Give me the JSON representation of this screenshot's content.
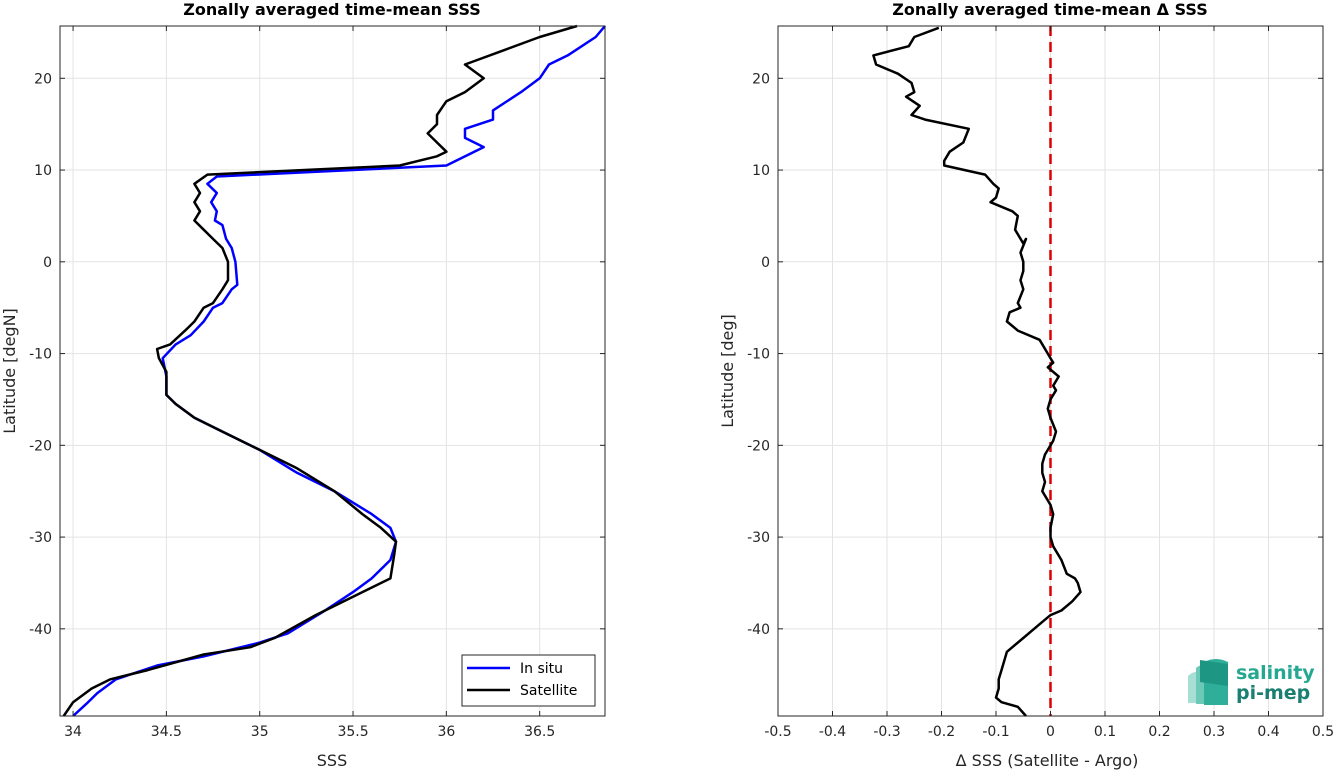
{
  "chart_data": [
    {
      "type": "line",
      "title": "Zonally averaged time-mean SSS",
      "xlabel": "SSS",
      "ylabel": "Latitude [degN]",
      "xlim": [
        33.93,
        36.85
      ],
      "ylim": [
        -49.5,
        25.7
      ],
      "xticks": [
        "34",
        "34.5",
        "35",
        "35.5",
        "36",
        "36.5"
      ],
      "yticks": [
        "-40",
        "-30",
        "-20",
        "-10",
        "0",
        "10",
        "20"
      ],
      "grid": true,
      "legend_position": "bottom-right",
      "series": [
        {
          "name": "In situ",
          "color": "#0000ff",
          "points": [
            [
              34.0,
              -49.5
            ],
            [
              34.07,
              -48.2
            ],
            [
              34.13,
              -47.0
            ],
            [
              34.23,
              -45.5
            ],
            [
              34.45,
              -44.0
            ],
            [
              34.7,
              -43.0
            ],
            [
              35.0,
              -41.5
            ],
            [
              35.15,
              -40.5
            ],
            [
              35.35,
              -38.0
            ],
            [
              35.5,
              -36.0
            ],
            [
              35.6,
              -34.5
            ],
            [
              35.7,
              -32.5
            ],
            [
              35.73,
              -30.5
            ],
            [
              35.7,
              -29.0
            ],
            [
              35.6,
              -27.5
            ],
            [
              35.4,
              -25.0
            ],
            [
              35.2,
              -23.0
            ],
            [
              35.0,
              -20.5
            ],
            [
              34.8,
              -18.5
            ],
            [
              34.65,
              -17.0
            ],
            [
              34.55,
              -15.5
            ],
            [
              34.5,
              -14.5
            ],
            [
              34.5,
              -12.5
            ],
            [
              34.48,
              -10.5
            ],
            [
              34.55,
              -9.0
            ],
            [
              34.63,
              -8.0
            ],
            [
              34.7,
              -6.5
            ],
            [
              34.75,
              -5.0
            ],
            [
              34.8,
              -4.5
            ],
            [
              34.85,
              -3.0
            ],
            [
              34.88,
              -2.5
            ],
            [
              34.87,
              0.0
            ],
            [
              34.85,
              1.5
            ],
            [
              34.82,
              2.5
            ],
            [
              34.8,
              4.0
            ],
            [
              34.76,
              4.5
            ],
            [
              34.77,
              5.5
            ],
            [
              34.74,
              6.5
            ],
            [
              34.77,
              7.5
            ],
            [
              34.72,
              8.5
            ],
            [
              34.77,
              9.3
            ],
            [
              36.0,
              10.5
            ],
            [
              36.2,
              12.5
            ],
            [
              36.1,
              13.5
            ],
            [
              36.1,
              14.5
            ],
            [
              36.25,
              15.5
            ],
            [
              36.25,
              16.5
            ],
            [
              36.4,
              18.5
            ],
            [
              36.5,
              20.0
            ],
            [
              36.55,
              21.5
            ],
            [
              36.65,
              22.5
            ],
            [
              36.8,
              24.5
            ],
            [
              36.85,
              25.7
            ]
          ]
        },
        {
          "name": "Satellite",
          "color": "#000000",
          "points": [
            [
              33.95,
              -49.5
            ],
            [
              34.0,
              -48.0
            ],
            [
              34.1,
              -46.5
            ],
            [
              34.2,
              -45.5
            ],
            [
              34.4,
              -44.5
            ],
            [
              34.7,
              -42.8
            ],
            [
              34.95,
              -42.0
            ],
            [
              35.08,
              -41.0
            ],
            [
              35.3,
              -38.5
            ],
            [
              35.55,
              -36.0
            ],
            [
              35.7,
              -34.5
            ],
            [
              35.72,
              -32.0
            ],
            [
              35.73,
              -30.5
            ],
            [
              35.65,
              -29.0
            ],
            [
              35.55,
              -27.5
            ],
            [
              35.4,
              -25.0
            ],
            [
              35.2,
              -22.5
            ],
            [
              35.0,
              -20.5
            ],
            [
              34.8,
              -18.5
            ],
            [
              34.65,
              -17.0
            ],
            [
              34.55,
              -15.5
            ],
            [
              34.5,
              -14.5
            ],
            [
              34.5,
              -13.0
            ],
            [
              34.5,
              -12.0
            ],
            [
              34.46,
              -10.5
            ],
            [
              34.45,
              -9.5
            ],
            [
              34.52,
              -9.0
            ],
            [
              34.6,
              -7.5
            ],
            [
              34.65,
              -6.5
            ],
            [
              34.7,
              -5.0
            ],
            [
              34.75,
              -4.5
            ],
            [
              34.8,
              -3.0
            ],
            [
              34.83,
              -2.0
            ],
            [
              34.83,
              0.0
            ],
            [
              34.8,
              1.5
            ],
            [
              34.75,
              2.5
            ],
            [
              34.7,
              3.5
            ],
            [
              34.65,
              4.5
            ],
            [
              34.68,
              5.5
            ],
            [
              34.65,
              6.5
            ],
            [
              34.68,
              7.5
            ],
            [
              34.65,
              8.5
            ],
            [
              34.72,
              9.5
            ],
            [
              35.75,
              10.5
            ],
            [
              35.95,
              11.5
            ],
            [
              36.0,
              12.0
            ],
            [
              35.95,
              13.0
            ],
            [
              35.9,
              14.0
            ],
            [
              35.95,
              15.0
            ],
            [
              35.95,
              16.0
            ],
            [
              36.0,
              17.5
            ],
            [
              36.1,
              18.5
            ],
            [
              36.2,
              20.0
            ],
            [
              36.1,
              21.5
            ],
            [
              36.3,
              23.0
            ],
            [
              36.5,
              24.5
            ],
            [
              36.7,
              25.7
            ]
          ]
        }
      ]
    },
    {
      "type": "line",
      "title": "Zonally averaged time-mean Δ SSS",
      "xlabel": "Δ SSS (Satellite - Argo)",
      "ylabel": "Latitude [deg]",
      "xlim": [
        -0.5,
        0.5
      ],
      "ylim": [
        -49.5,
        25.7
      ],
      "xticks": [
        "-0.5",
        "-0.4",
        "-0.3",
        "-0.2",
        "-0.1",
        "0",
        "0.1",
        "0.2",
        "0.3",
        "0.4",
        "0.5"
      ],
      "yticks": [
        "-40",
        "-30",
        "-20",
        "-10",
        "0",
        "10",
        "20"
      ],
      "grid": true,
      "reference_line": {
        "x": 0,
        "color": "#dd0000",
        "style": "dashed"
      },
      "series": [
        {
          "color": "#000000",
          "points": [
            [
              -0.205,
              25.5
            ],
            [
              -0.25,
              24.5
            ],
            [
              -0.26,
              23.5
            ],
            [
              -0.325,
              22.5
            ],
            [
              -0.32,
              21.5
            ],
            [
              -0.28,
              20.5
            ],
            [
              -0.255,
              19.5
            ],
            [
              -0.25,
              18.5
            ],
            [
              -0.265,
              18.0
            ],
            [
              -0.24,
              17.0
            ],
            [
              -0.255,
              16.0
            ],
            [
              -0.23,
              15.5
            ],
            [
              -0.15,
              14.5
            ],
            [
              -0.16,
              13.0
            ],
            [
              -0.185,
              12.0
            ],
            [
              -0.195,
              11.0
            ],
            [
              -0.195,
              10.5
            ],
            [
              -0.12,
              9.5
            ],
            [
              -0.105,
              8.5
            ],
            [
              -0.095,
              8.0
            ],
            [
              -0.1,
              7.0
            ],
            [
              -0.11,
              6.5
            ],
            [
              -0.07,
              5.5
            ],
            [
              -0.06,
              5.0
            ],
            [
              -0.065,
              3.5
            ],
            [
              -0.05,
              2.0
            ],
            [
              -0.045,
              2.5
            ],
            [
              -0.055,
              1.0
            ],
            [
              -0.05,
              0.0
            ],
            [
              -0.05,
              -1.0
            ],
            [
              -0.055,
              -2.0
            ],
            [
              -0.05,
              -3.0
            ],
            [
              -0.06,
              -4.5
            ],
            [
              -0.055,
              -5.0
            ],
            [
              -0.075,
              -5.5
            ],
            [
              -0.08,
              -6.5
            ],
            [
              -0.07,
              -7.0
            ],
            [
              -0.06,
              -7.5
            ],
            [
              -0.02,
              -8.5
            ],
            [
              -0.005,
              -10.0
            ],
            [
              0.0,
              -10.5
            ],
            [
              0.005,
              -11.0
            ],
            [
              -0.005,
              -11.5
            ],
            [
              0.015,
              -12.5
            ],
            [
              0.005,
              -13.5
            ],
            [
              0.01,
              -14.0
            ],
            [
              0.0,
              -15.0
            ],
            [
              -0.005,
              -16.0
            ],
            [
              0.0,
              -17.0
            ],
            [
              0.01,
              -18.5
            ],
            [
              0.005,
              -19.5
            ],
            [
              -0.005,
              -20.5
            ],
            [
              -0.01,
              -21.0
            ],
            [
              -0.015,
              -22.0
            ],
            [
              -0.015,
              -23.0
            ],
            [
              -0.01,
              -24.0
            ],
            [
              -0.015,
              -25.0
            ],
            [
              -0.005,
              -26.0
            ],
            [
              0.0,
              -26.5
            ],
            [
              0.005,
              -27.5
            ],
            [
              0.0,
              -29.0
            ],
            [
              0.0,
              -30.0
            ],
            [
              0.005,
              -31.0
            ],
            [
              0.02,
              -32.5
            ],
            [
              0.03,
              -34.0
            ],
            [
              0.045,
              -34.5
            ],
            [
              0.05,
              -35.0
            ],
            [
              0.055,
              -36.0
            ],
            [
              0.04,
              -37.0
            ],
            [
              0.02,
              -38.0
            ],
            [
              0.0,
              -38.5
            ],
            [
              -0.02,
              -39.5
            ],
            [
              -0.05,
              -41.0
            ],
            [
              -0.08,
              -42.5
            ],
            [
              -0.09,
              -44.5
            ],
            [
              -0.095,
              -45.5
            ],
            [
              -0.095,
              -46.5
            ],
            [
              -0.1,
              -47.5
            ],
            [
              -0.09,
              -48.0
            ],
            [
              -0.06,
              -48.5
            ],
            [
              -0.045,
              -49.5
            ]
          ]
        }
      ]
    }
  ],
  "legend": {
    "items": [
      "In situ",
      "Satellite"
    ]
  },
  "logo": {
    "line1": "salinity",
    "line2": "pi-mep"
  }
}
